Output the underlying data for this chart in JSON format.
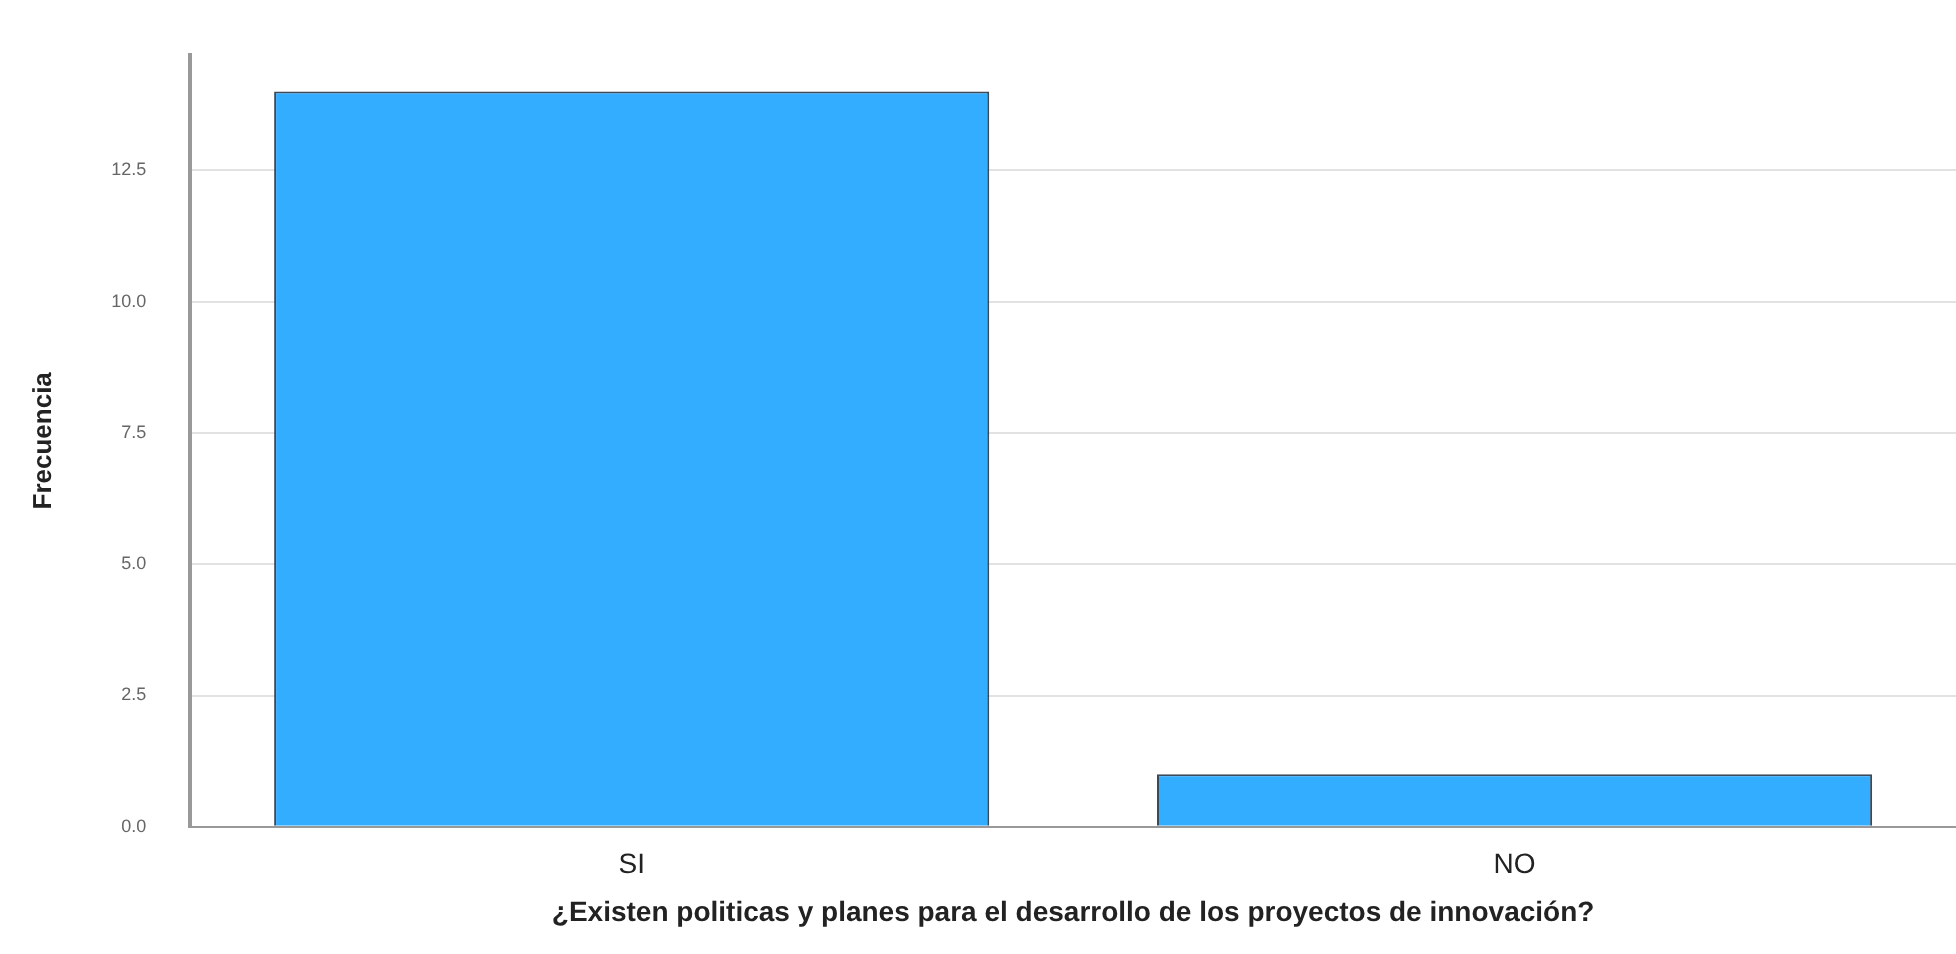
{
  "chart_data": {
    "type": "bar",
    "categories": [
      "SI",
      "NO"
    ],
    "values": [
      14,
      1
    ],
    "color": "#33adff",
    "xlabel": "¿Existen politicas y planes para el desarrollo de los proyectos de innovación?",
    "ylabel": "Frecuencia",
    "ylim": [
      0,
      14.7
    ],
    "yticks": [
      {
        "value": 0,
        "label": "0.0"
      },
      {
        "value": 2.5,
        "label": "2.5"
      },
      {
        "value": 5,
        "label": "5.0"
      },
      {
        "value": 7.5,
        "label": "7.5"
      },
      {
        "value": 10,
        "label": "10.0"
      },
      {
        "value": 12.5,
        "label": "12.5"
      }
    ],
    "grid": "y",
    "legend": false
  }
}
